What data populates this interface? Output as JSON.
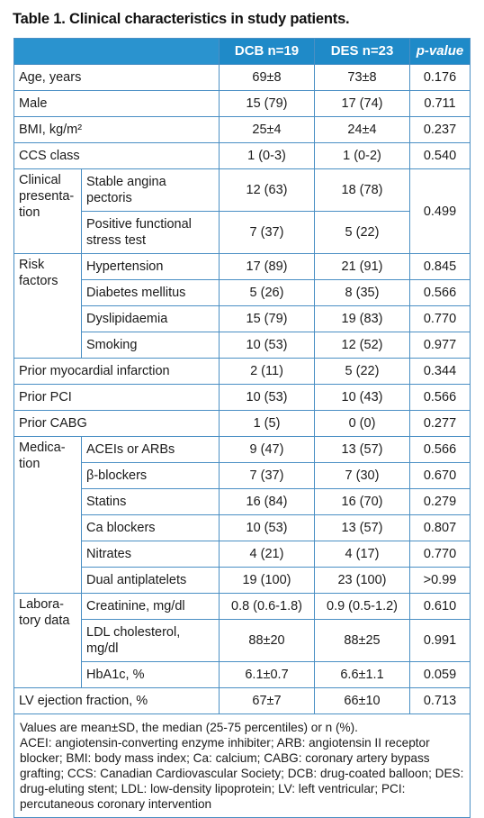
{
  "title": "Table 1. Clinical characteristics in study patients.",
  "header": {
    "dcb": "DCB n=19",
    "des": "DES n=23",
    "p": "p-value"
  },
  "rows": {
    "age": {
      "label": "Age, years",
      "dcb": "69±8",
      "des": "73±8",
      "p": "0.176"
    },
    "male": {
      "label": "Male",
      "dcb": "15 (79)",
      "des": "17 (74)",
      "p": "0.711"
    },
    "bmi": {
      "label": "BMI, kg/m²",
      "dcb": "25±4",
      "des": "24±4",
      "p": "0.237"
    },
    "ccs": {
      "label": "CCS class",
      "dcb": "1 (0-3)",
      "des": "1 (0-2)",
      "p": "0.540"
    },
    "clinical": {
      "group": "Clinical presenta-tion",
      "p": "0.499",
      "stable": {
        "label": "Stable angina pectoris",
        "dcb": "12 (63)",
        "des": "18 (78)"
      },
      "positive": {
        "label": "Positive functional stress test",
        "dcb": "7 (37)",
        "des": "5 (22)"
      }
    },
    "risk": {
      "group": "Risk factors",
      "hypertension": {
        "label": "Hypertension",
        "dcb": "17 (89)",
        "des": "21 (91)",
        "p": "0.845"
      },
      "diabetes": {
        "label": "Diabetes mellitus",
        "dcb": "5 (26)",
        "des": "8 (35)",
        "p": "0.566"
      },
      "dyslipidaemia": {
        "label": "Dyslipidaemia",
        "dcb": "15 (79)",
        "des": "19 (83)",
        "p": "0.770"
      },
      "smoking": {
        "label": "Smoking",
        "dcb": "10 (53)",
        "des": "12 (52)",
        "p": "0.977"
      }
    },
    "prior_mi": {
      "label": "Prior myocardial infarction",
      "dcb": "2 (11)",
      "des": "5 (22)",
      "p": "0.344"
    },
    "prior_pci": {
      "label": "Prior PCI",
      "dcb": "10 (53)",
      "des": "10 (43)",
      "p": "0.566"
    },
    "prior_cabg": {
      "label": "Prior CABG",
      "dcb": "1 (5)",
      "des": "0 (0)",
      "p": "0.277"
    },
    "medication": {
      "group": "Medica-tion",
      "acei": {
        "label": "ACEIs or ARBs",
        "dcb": "9 (47)",
        "des": "13 (57)",
        "p": "0.566"
      },
      "beta": {
        "label": "β-blockers",
        "dcb": "7 (37)",
        "des": "7 (30)",
        "p": "0.670"
      },
      "statins": {
        "label": "Statins",
        "dcb": "16 (84)",
        "des": "16 (70)",
        "p": "0.279"
      },
      "ca": {
        "label": "Ca blockers",
        "dcb": "10 (53)",
        "des": "13 (57)",
        "p": "0.807"
      },
      "nitrates": {
        "label": "Nitrates",
        "dcb": "4 (21)",
        "des": "4 (17)",
        "p": "0.770"
      },
      "dual": {
        "label": "Dual antiplatelets",
        "dcb": "19 (100)",
        "des": "23 (100)",
        "p": ">0.99"
      }
    },
    "lab": {
      "group": "Labora-tory data",
      "creatinine": {
        "label": "Creatinine, mg/dl",
        "dcb": "0.8 (0.6-1.8)",
        "des": "0.9 (0.5-1.2)",
        "p": "0.610"
      },
      "ldl": {
        "label": "LDL cholesterol, mg/dl",
        "dcb": "88±20",
        "des": "88±25",
        "p": "0.991"
      },
      "hba1c": {
        "label": "HbA1c, %",
        "dcb": "6.1±0.7",
        "des": "6.6±1.1",
        "p": "0.059"
      }
    },
    "lvef": {
      "label": "LV ejection fraction, %",
      "dcb": "67±7",
      "des": "66±10",
      "p": "0.713"
    }
  },
  "footnote": {
    "line1": "Values are mean±SD, the median (25-75 percentiles) or n (%).",
    "line2": "ACEI: angiotensin-converting enzyme inhibiter; ARB: angiotensin II receptor blocker; BMI: body mass index; Ca: calcium; CABG: coronary artery bypass grafting; CCS: Canadian Cardiovascular Society; DCB: drug-coated balloon; DES: drug-eluting stent; LDL: low-density lipoprotein; LV: left ventricular; PCI: percutaneous coronary intervention"
  }
}
